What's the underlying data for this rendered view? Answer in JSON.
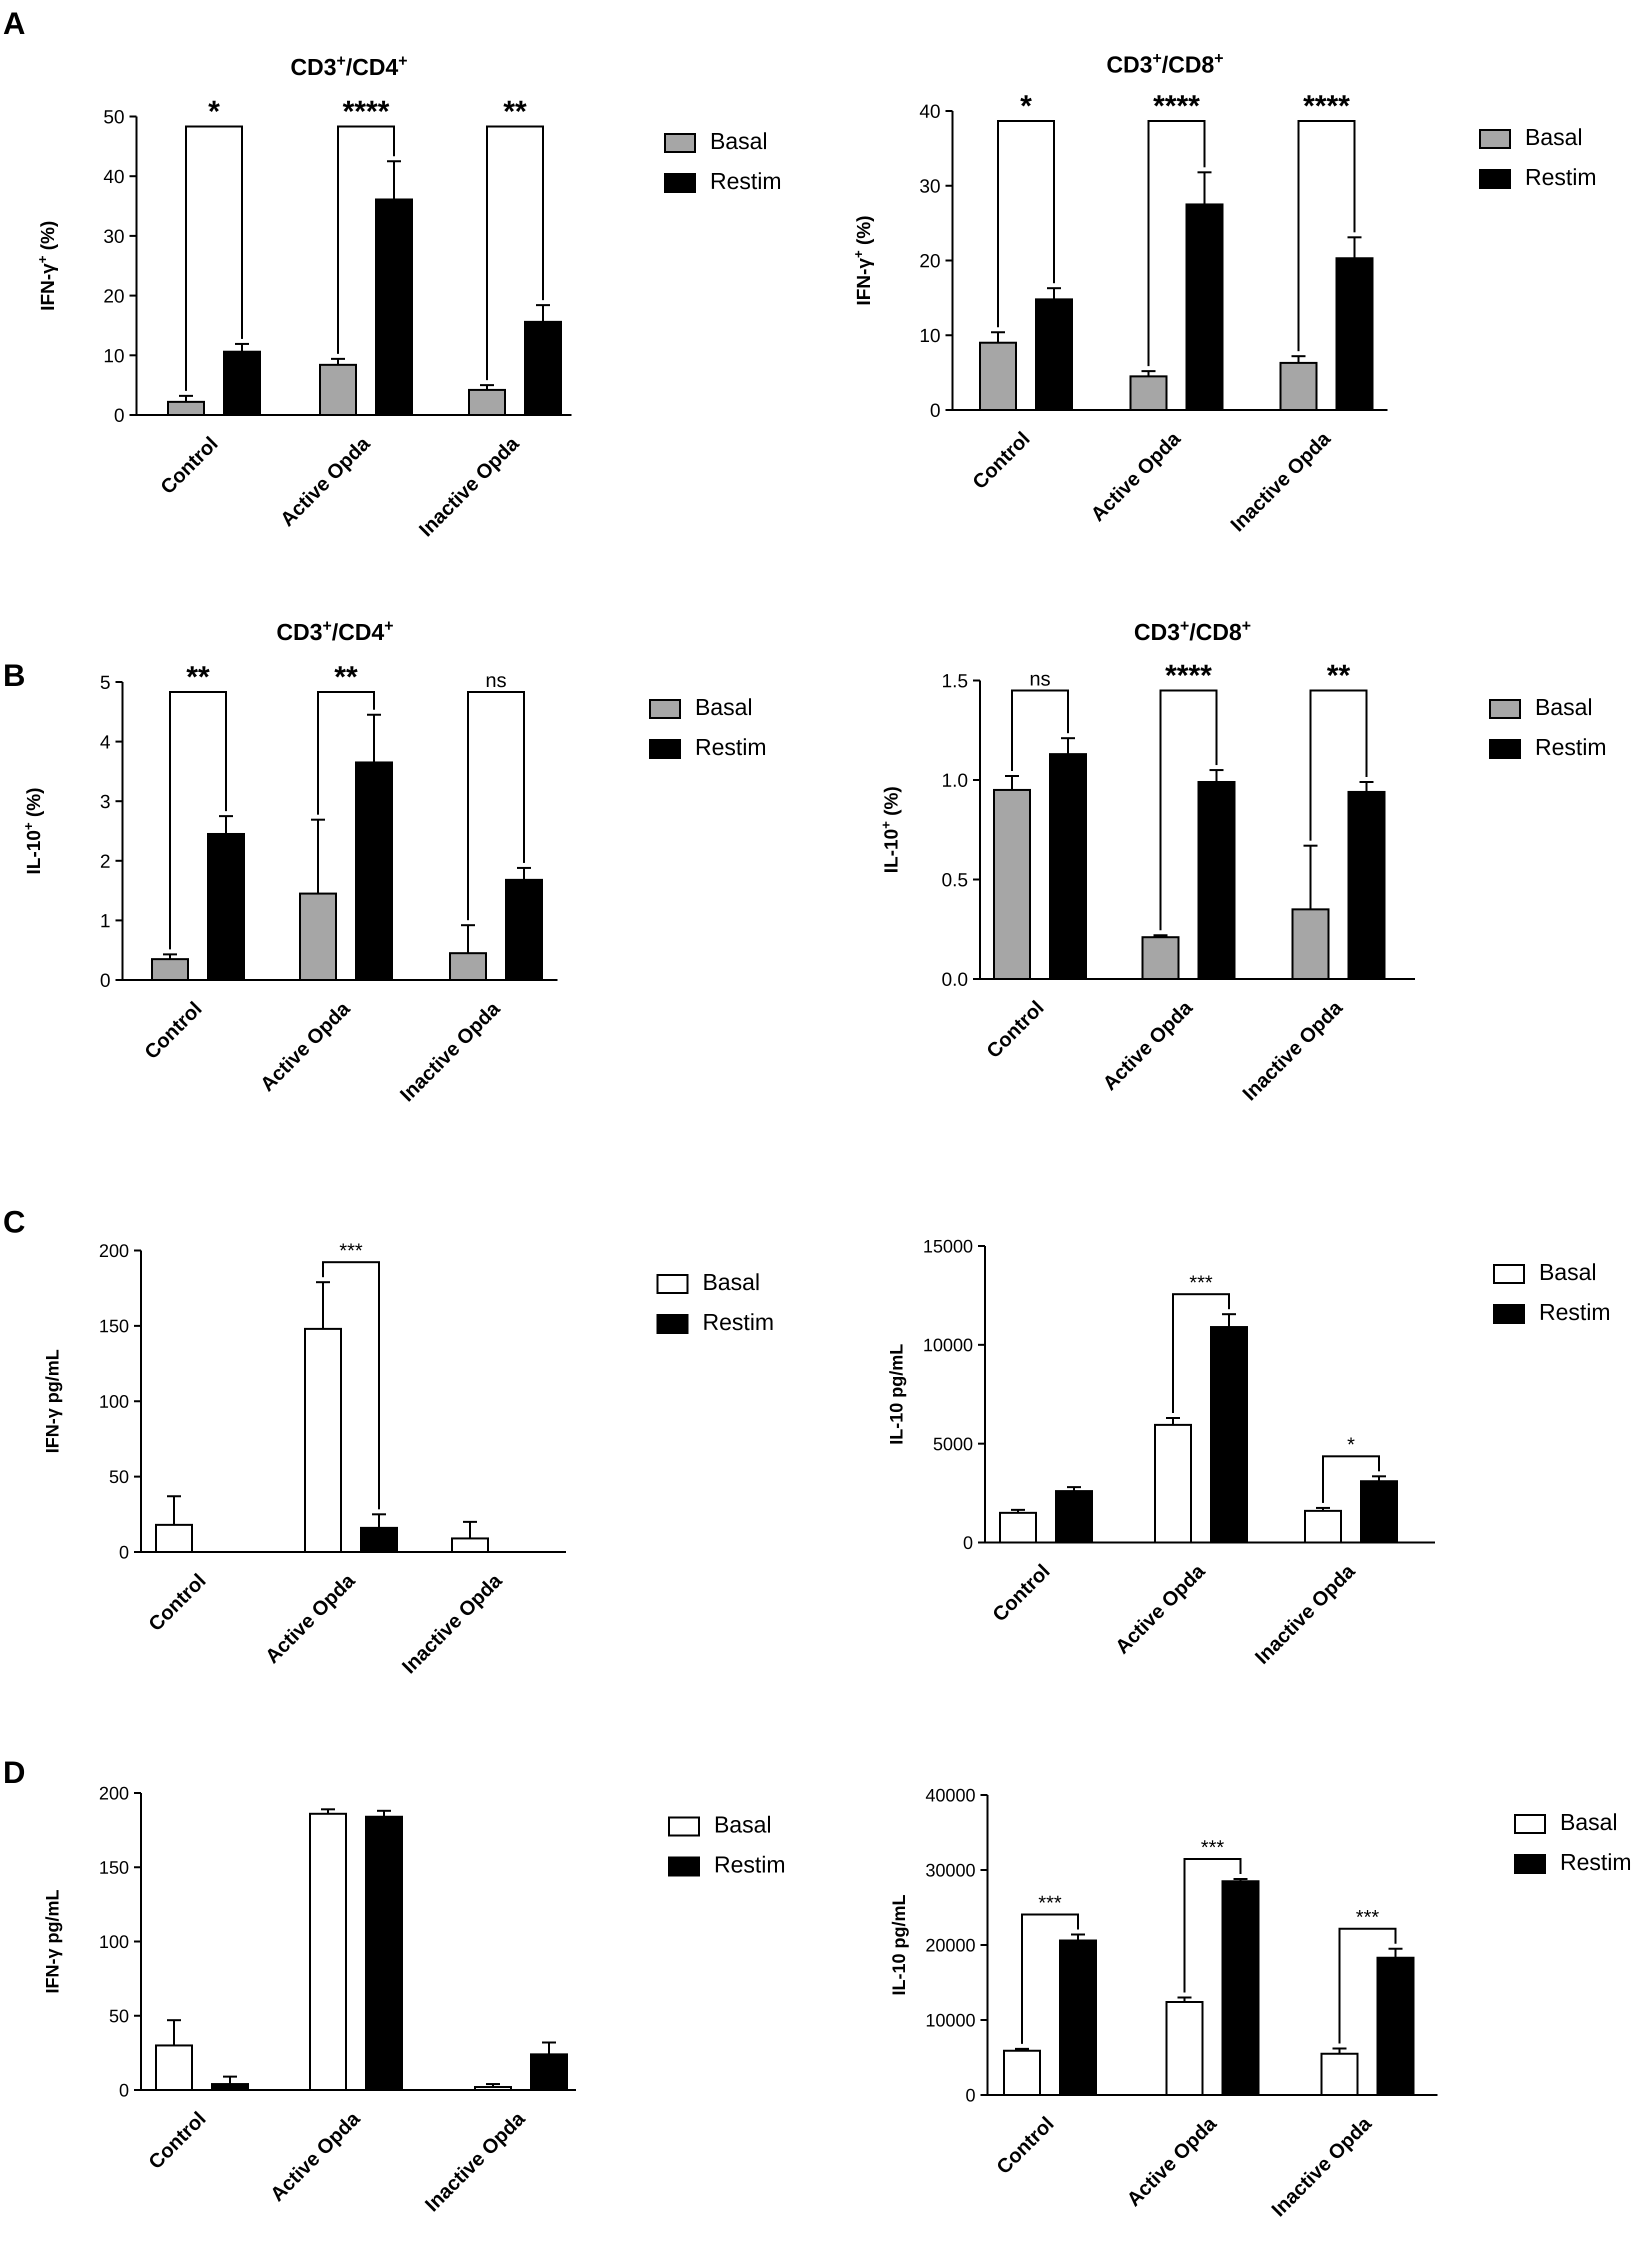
{
  "colors": {
    "basal_gray": "#a6a6a6",
    "restim_black": "#000000",
    "axis": "#000000",
    "hollow_fill": "#ffffff"
  },
  "panels": [
    {
      "label": "A"
    },
    {
      "label": "B"
    },
    {
      "label": "C"
    },
    {
      "label": "D"
    }
  ],
  "chart_data": [
    {
      "id": "A-left",
      "panel": "A",
      "type": "bar",
      "title_main": "CD3",
      "title_sup1": "+",
      "title_mid": "/CD4",
      "title_sup2": "+",
      "ylabel_main": "IFN-γ",
      "ylabel_sup": "+",
      "ylabel_tail": " (%)",
      "ylim": [
        0,
        50
      ],
      "yticks": [
        "0",
        "10",
        "20",
        "30",
        "40",
        "50"
      ],
      "ytick_values": [
        0,
        10,
        20,
        30,
        40,
        50
      ],
      "categories": [
        "Control",
        "Active Opda",
        "Inactive Opda"
      ],
      "series": [
        {
          "name": "Basal",
          "style": "gray",
          "values": [
            2.2,
            8.4,
            4.2
          ],
          "errors": [
            1.0,
            1.0,
            0.8
          ]
        },
        {
          "name": "Restim",
          "style": "black",
          "values": [
            10.6,
            36.1,
            15.6
          ],
          "errors": [
            1.3,
            6.4,
            2.8
          ]
        }
      ],
      "significance": [
        "*",
        "****",
        "**"
      ],
      "legend_position": "right"
    },
    {
      "id": "A-right",
      "panel": "A",
      "type": "bar",
      "title_main": "CD3",
      "title_sup1": "+",
      "title_mid": "/CD8",
      "title_sup2": "+",
      "ylabel_main": "IFN-γ",
      "ylabel_sup": "+",
      "ylabel_tail": " (%)",
      "ylim": [
        0,
        40
      ],
      "yticks": [
        "0",
        "10",
        "20",
        "30",
        "40"
      ],
      "ytick_values": [
        0,
        10,
        20,
        30,
        40
      ],
      "categories": [
        "Control",
        "Active Opda",
        "Inactive Opda"
      ],
      "series": [
        {
          "name": "Basal",
          "style": "gray",
          "values": [
            9.0,
            4.5,
            6.3
          ],
          "errors": [
            1.4,
            0.7,
            0.9
          ]
        },
        {
          "name": "Restim",
          "style": "black",
          "values": [
            14.8,
            27.5,
            20.3
          ],
          "errors": [
            1.5,
            4.3,
            2.8
          ]
        }
      ],
      "significance": [
        "*",
        "****",
        "****"
      ],
      "legend_position": "right"
    },
    {
      "id": "B-left",
      "panel": "B",
      "type": "bar",
      "title_main": "CD3",
      "title_sup1": "+",
      "title_mid": "/CD4",
      "title_sup2": "+",
      "ylabel_main": "IL-10",
      "ylabel_sup": "+",
      "ylabel_tail": " (%)",
      "ylim": [
        0,
        5
      ],
      "yticks": [
        "0",
        "1",
        "2",
        "3",
        "4",
        "5"
      ],
      "ytick_values": [
        0,
        1,
        2,
        3,
        4,
        5
      ],
      "categories": [
        "Control",
        "Active Opda",
        "Inactive Opda"
      ],
      "series": [
        {
          "name": "Basal",
          "style": "gray",
          "values": [
            0.35,
            1.45,
            0.45
          ],
          "errors": [
            0.08,
            1.24,
            0.47
          ]
        },
        {
          "name": "Restim",
          "style": "black",
          "values": [
            2.45,
            3.65,
            1.68
          ],
          "errors": [
            0.3,
            0.8,
            0.2
          ]
        }
      ],
      "significance": [
        "**",
        "**",
        "ns"
      ],
      "legend_position": "right"
    },
    {
      "id": "B-right",
      "panel": "B",
      "type": "bar",
      "title_main": "CD3",
      "title_sup1": "+",
      "title_mid": "/CD8",
      "title_sup2": "+",
      "ylabel_main": "IL-10",
      "ylabel_sup": "+",
      "ylabel_tail": " (%)",
      "ylim": [
        0,
        1.5
      ],
      "yticks": [
        "0.0",
        "0.5",
        "1.0",
        "1.5"
      ],
      "ytick_values": [
        0,
        0.5,
        1.0,
        1.5
      ],
      "categories": [
        "Control",
        "Active Opda",
        "Inactive Opda"
      ],
      "series": [
        {
          "name": "Basal",
          "style": "gray",
          "values": [
            0.95,
            0.21,
            0.35
          ],
          "errors": [
            0.07,
            0.01,
            0.32
          ]
        },
        {
          "name": "Restim",
          "style": "black",
          "values": [
            1.13,
            0.99,
            0.94
          ],
          "errors": [
            0.08,
            0.06,
            0.05
          ]
        }
      ],
      "significance": [
        "ns",
        "****",
        "**"
      ],
      "legend_position": "right"
    },
    {
      "id": "C-left",
      "panel": "C",
      "type": "bar",
      "title_main": "",
      "title_sup1": "",
      "title_mid": "",
      "title_sup2": "",
      "ylabel_main": "IFN-γ pg/mL",
      "ylabel_sup": "",
      "ylabel_tail": "",
      "ylim": [
        0,
        200
      ],
      "yticks": [
        "0",
        "50",
        "100",
        "150",
        "200"
      ],
      "ytick_values": [
        0,
        50,
        100,
        150,
        200
      ],
      "categories": [
        "Control",
        "Active Opda",
        "Inactive Opda"
      ],
      "series": [
        {
          "name": "Basal",
          "style": "hollow",
          "values": [
            18,
            148,
            9
          ],
          "errors": [
            19,
            31,
            11
          ]
        },
        {
          "name": "Restim",
          "style": "black",
          "values": [
            0,
            16,
            0
          ],
          "errors": [
            0,
            9,
            0
          ]
        }
      ],
      "significance": [
        "",
        "***",
        ""
      ],
      "legend_position": "right"
    },
    {
      "id": "C-right",
      "panel": "C",
      "type": "bar",
      "title_main": "",
      "title_sup1": "",
      "title_mid": "",
      "title_sup2": "",
      "ylabel_main": "IL-10 pg/mL",
      "ylabel_sup": "",
      "ylabel_tail": "",
      "ylim": [
        0,
        15000
      ],
      "yticks": [
        "0",
        "5000",
        "10000",
        "15000"
      ],
      "ytick_values": [
        0,
        5000,
        10000,
        15000
      ],
      "categories": [
        "Control",
        "Active Opda",
        "Inactive Opda"
      ],
      "series": [
        {
          "name": "Basal",
          "style": "hollow",
          "values": [
            1500,
            5950,
            1600
          ],
          "errors": [
            150,
            350,
            150
          ]
        },
        {
          "name": "Restim",
          "style": "black",
          "values": [
            2600,
            10900,
            3100
          ],
          "errors": [
            200,
            650,
            250
          ]
        }
      ],
      "significance": [
        "",
        "***",
        "*"
      ],
      "legend_position": "right"
    },
    {
      "id": "D-left",
      "panel": "D",
      "type": "bar",
      "title_main": "",
      "title_sup1": "",
      "title_mid": "",
      "title_sup2": "",
      "ylabel_main": "IFN-γ pg/mL",
      "ylabel_sup": "",
      "ylabel_tail": "",
      "ylim": [
        0,
        200
      ],
      "yticks": [
        "0",
        "50",
        "100",
        "150",
        "200"
      ],
      "ytick_values": [
        0,
        50,
        100,
        150,
        200
      ],
      "categories": [
        "Control",
        "Active Opda",
        "Inactive Opda"
      ],
      "series": [
        {
          "name": "Basal",
          "style": "hollow",
          "values": [
            30,
            186,
            2
          ],
          "errors": [
            17,
            3,
            2
          ]
        },
        {
          "name": "Restim",
          "style": "black",
          "values": [
            4,
            184,
            24
          ],
          "errors": [
            5,
            4,
            8
          ]
        }
      ],
      "significance": [
        "",
        "",
        ""
      ],
      "legend_position": "right"
    },
    {
      "id": "D-right",
      "panel": "D",
      "type": "bar",
      "title_main": "",
      "title_sup1": "",
      "title_mid": "",
      "title_sup2": "",
      "ylabel_main": "IL-10 pg/mL",
      "ylabel_sup": "",
      "ylabel_tail": "",
      "ylim": [
        0,
        40000
      ],
      "yticks": [
        "0",
        "10000",
        "20000",
        "30000",
        "40000"
      ],
      "ytick_values": [
        0,
        10000,
        20000,
        30000,
        40000
      ],
      "categories": [
        "Control",
        "Active Opda",
        "Inactive Opda"
      ],
      "series": [
        {
          "name": "Basal",
          "style": "hollow",
          "values": [
            5900,
            12400,
            5500
          ],
          "errors": [
            250,
            600,
            700
          ]
        },
        {
          "name": "Restim",
          "style": "black",
          "values": [
            20600,
            28500,
            18300
          ],
          "errors": [
            800,
            300,
            1200
          ]
        }
      ],
      "significance": [
        "***",
        "***",
        "***"
      ],
      "legend_position": "right"
    }
  ]
}
